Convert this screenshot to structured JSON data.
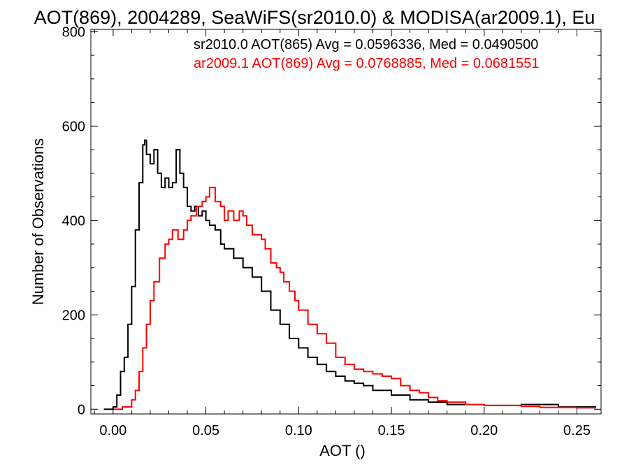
{
  "chart_data": {
    "type": "line",
    "title": "AOT(869), 2004289, SeaWiFS(sr2010.0) & MODISA(ar2009.1), Eu",
    "xlabel": "AOT ()",
    "ylabel": "Number of Observations",
    "xlim": [
      -0.012,
      0.263
    ],
    "ylim": [
      -10,
      805
    ],
    "xticks": [
      0.0,
      0.05,
      0.1,
      0.15,
      0.2,
      0.25
    ],
    "xtick_labels": [
      "0.00",
      "0.05",
      "0.10",
      "0.15",
      "0.20",
      "0.25"
    ],
    "yticks": [
      0,
      200,
      400,
      600,
      800
    ],
    "ytick_labels": [
      "0",
      "200",
      "400",
      "600",
      "800"
    ],
    "grid": false,
    "legend_position": "top-right",
    "annotations": [
      {
        "text": "sr2010.0 AOT(865) Avg = 0.0596336, Med = 0.0490500",
        "color": "#000000"
      },
      {
        "text": "ar2009.1 AOT(869) Avg = 0.0768885, Med = 0.0681551",
        "color": "#ff0000"
      }
    ],
    "series": [
      {
        "color": "#000000",
        "points": [
          [
            -0.005,
            0
          ],
          [
            0.0,
            5
          ],
          [
            0.002,
            30
          ],
          [
            0.004,
            80
          ],
          [
            0.006,
            110
          ],
          [
            0.008,
            180
          ],
          [
            0.01,
            260
          ],
          [
            0.012,
            380
          ],
          [
            0.014,
            480
          ],
          [
            0.016,
            560
          ],
          [
            0.017,
            570
          ],
          [
            0.018,
            540
          ],
          [
            0.02,
            520
          ],
          [
            0.022,
            550
          ],
          [
            0.024,
            500
          ],
          [
            0.026,
            470
          ],
          [
            0.028,
            490
          ],
          [
            0.03,
            470
          ],
          [
            0.032,
            480
          ],
          [
            0.034,
            550
          ],
          [
            0.036,
            500
          ],
          [
            0.038,
            470
          ],
          [
            0.04,
            430
          ],
          [
            0.042,
            420
          ],
          [
            0.044,
            430
          ],
          [
            0.046,
            410
          ],
          [
            0.048,
            420
          ],
          [
            0.05,
            400
          ],
          [
            0.052,
            390
          ],
          [
            0.055,
            380
          ],
          [
            0.058,
            350
          ],
          [
            0.06,
            340
          ],
          [
            0.065,
            320
          ],
          [
            0.07,
            300
          ],
          [
            0.075,
            280
          ],
          [
            0.08,
            250
          ],
          [
            0.085,
            210
          ],
          [
            0.09,
            180
          ],
          [
            0.095,
            150
          ],
          [
            0.1,
            130
          ],
          [
            0.105,
            110
          ],
          [
            0.11,
            95
          ],
          [
            0.115,
            80
          ],
          [
            0.12,
            70
          ],
          [
            0.125,
            60
          ],
          [
            0.13,
            55
          ],
          [
            0.135,
            50
          ],
          [
            0.14,
            40
          ],
          [
            0.15,
            30
          ],
          [
            0.16,
            20
          ],
          [
            0.17,
            15
          ],
          [
            0.18,
            10
          ],
          [
            0.2,
            8
          ],
          [
            0.22,
            10
          ],
          [
            0.24,
            5
          ],
          [
            0.26,
            3
          ]
        ]
      },
      {
        "color": "#ff0000",
        "points": [
          [
            0.0,
            0
          ],
          [
            0.005,
            5
          ],
          [
            0.01,
            20
          ],
          [
            0.012,
            40
          ],
          [
            0.014,
            80
          ],
          [
            0.016,
            130
          ],
          [
            0.018,
            180
          ],
          [
            0.02,
            230
          ],
          [
            0.022,
            270
          ],
          [
            0.025,
            320
          ],
          [
            0.028,
            350
          ],
          [
            0.03,
            360
          ],
          [
            0.032,
            380
          ],
          [
            0.035,
            360
          ],
          [
            0.038,
            380
          ],
          [
            0.04,
            400
          ],
          [
            0.042,
            410
          ],
          [
            0.045,
            430
          ],
          [
            0.048,
            440
          ],
          [
            0.05,
            450
          ],
          [
            0.052,
            470
          ],
          [
            0.055,
            440
          ],
          [
            0.058,
            430
          ],
          [
            0.06,
            400
          ],
          [
            0.062,
            420
          ],
          [
            0.065,
            400
          ],
          [
            0.068,
            420
          ],
          [
            0.07,
            410
          ],
          [
            0.072,
            390
          ],
          [
            0.075,
            370
          ],
          [
            0.078,
            370
          ],
          [
            0.08,
            360
          ],
          [
            0.082,
            340
          ],
          [
            0.085,
            310
          ],
          [
            0.088,
            300
          ],
          [
            0.09,
            290
          ],
          [
            0.092,
            270
          ],
          [
            0.095,
            250
          ],
          [
            0.098,
            230
          ],
          [
            0.1,
            210
          ],
          [
            0.105,
            180
          ],
          [
            0.11,
            160
          ],
          [
            0.115,
            140
          ],
          [
            0.12,
            110
          ],
          [
            0.125,
            95
          ],
          [
            0.13,
            85
          ],
          [
            0.135,
            80
          ],
          [
            0.14,
            75
          ],
          [
            0.145,
            70
          ],
          [
            0.15,
            65
          ],
          [
            0.155,
            50
          ],
          [
            0.16,
            40
          ],
          [
            0.165,
            35
          ],
          [
            0.17,
            25
          ],
          [
            0.175,
            18
          ],
          [
            0.18,
            15
          ],
          [
            0.19,
            10
          ],
          [
            0.2,
            8
          ],
          [
            0.21,
            8
          ],
          [
            0.22,
            6
          ],
          [
            0.23,
            4
          ],
          [
            0.24,
            4
          ],
          [
            0.25,
            3
          ],
          [
            0.26,
            2
          ]
        ]
      }
    ]
  }
}
